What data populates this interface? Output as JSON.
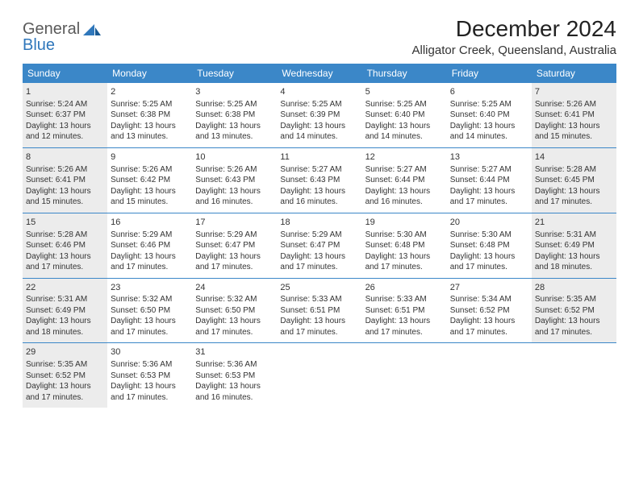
{
  "logo": {
    "general": "General",
    "blue": "Blue"
  },
  "title": "December 2024",
  "location": "Alligator Creek, Queensland, Australia",
  "colors": {
    "header_bg": "#3b87c8",
    "header_text": "#ffffff",
    "shaded_bg": "#ececec",
    "border": "#3b87c8",
    "logo_general": "#5a5a5a",
    "logo_blue": "#2f77bb"
  },
  "day_names": [
    "Sunday",
    "Monday",
    "Tuesday",
    "Wednesday",
    "Thursday",
    "Friday",
    "Saturday"
  ],
  "weeks": [
    [
      {
        "day": "1",
        "shaded": true,
        "sunrise": "Sunrise: 5:24 AM",
        "sunset": "Sunset: 6:37 PM",
        "daylight1": "Daylight: 13 hours",
        "daylight2": "and 12 minutes."
      },
      {
        "day": "2",
        "shaded": false,
        "sunrise": "Sunrise: 5:25 AM",
        "sunset": "Sunset: 6:38 PM",
        "daylight1": "Daylight: 13 hours",
        "daylight2": "and 13 minutes."
      },
      {
        "day": "3",
        "shaded": false,
        "sunrise": "Sunrise: 5:25 AM",
        "sunset": "Sunset: 6:38 PM",
        "daylight1": "Daylight: 13 hours",
        "daylight2": "and 13 minutes."
      },
      {
        "day": "4",
        "shaded": false,
        "sunrise": "Sunrise: 5:25 AM",
        "sunset": "Sunset: 6:39 PM",
        "daylight1": "Daylight: 13 hours",
        "daylight2": "and 14 minutes."
      },
      {
        "day": "5",
        "shaded": false,
        "sunrise": "Sunrise: 5:25 AM",
        "sunset": "Sunset: 6:40 PM",
        "daylight1": "Daylight: 13 hours",
        "daylight2": "and 14 minutes."
      },
      {
        "day": "6",
        "shaded": false,
        "sunrise": "Sunrise: 5:25 AM",
        "sunset": "Sunset: 6:40 PM",
        "daylight1": "Daylight: 13 hours",
        "daylight2": "and 14 minutes."
      },
      {
        "day": "7",
        "shaded": true,
        "sunrise": "Sunrise: 5:26 AM",
        "sunset": "Sunset: 6:41 PM",
        "daylight1": "Daylight: 13 hours",
        "daylight2": "and 15 minutes."
      }
    ],
    [
      {
        "day": "8",
        "shaded": true,
        "sunrise": "Sunrise: 5:26 AM",
        "sunset": "Sunset: 6:41 PM",
        "daylight1": "Daylight: 13 hours",
        "daylight2": "and 15 minutes."
      },
      {
        "day": "9",
        "shaded": false,
        "sunrise": "Sunrise: 5:26 AM",
        "sunset": "Sunset: 6:42 PM",
        "daylight1": "Daylight: 13 hours",
        "daylight2": "and 15 minutes."
      },
      {
        "day": "10",
        "shaded": false,
        "sunrise": "Sunrise: 5:26 AM",
        "sunset": "Sunset: 6:43 PM",
        "daylight1": "Daylight: 13 hours",
        "daylight2": "and 16 minutes."
      },
      {
        "day": "11",
        "shaded": false,
        "sunrise": "Sunrise: 5:27 AM",
        "sunset": "Sunset: 6:43 PM",
        "daylight1": "Daylight: 13 hours",
        "daylight2": "and 16 minutes."
      },
      {
        "day": "12",
        "shaded": false,
        "sunrise": "Sunrise: 5:27 AM",
        "sunset": "Sunset: 6:44 PM",
        "daylight1": "Daylight: 13 hours",
        "daylight2": "and 16 minutes."
      },
      {
        "day": "13",
        "shaded": false,
        "sunrise": "Sunrise: 5:27 AM",
        "sunset": "Sunset: 6:44 PM",
        "daylight1": "Daylight: 13 hours",
        "daylight2": "and 17 minutes."
      },
      {
        "day": "14",
        "shaded": true,
        "sunrise": "Sunrise: 5:28 AM",
        "sunset": "Sunset: 6:45 PM",
        "daylight1": "Daylight: 13 hours",
        "daylight2": "and 17 minutes."
      }
    ],
    [
      {
        "day": "15",
        "shaded": true,
        "sunrise": "Sunrise: 5:28 AM",
        "sunset": "Sunset: 6:46 PM",
        "daylight1": "Daylight: 13 hours",
        "daylight2": "and 17 minutes."
      },
      {
        "day": "16",
        "shaded": false,
        "sunrise": "Sunrise: 5:29 AM",
        "sunset": "Sunset: 6:46 PM",
        "daylight1": "Daylight: 13 hours",
        "daylight2": "and 17 minutes."
      },
      {
        "day": "17",
        "shaded": false,
        "sunrise": "Sunrise: 5:29 AM",
        "sunset": "Sunset: 6:47 PM",
        "daylight1": "Daylight: 13 hours",
        "daylight2": "and 17 minutes."
      },
      {
        "day": "18",
        "shaded": false,
        "sunrise": "Sunrise: 5:29 AM",
        "sunset": "Sunset: 6:47 PM",
        "daylight1": "Daylight: 13 hours",
        "daylight2": "and 17 minutes."
      },
      {
        "day": "19",
        "shaded": false,
        "sunrise": "Sunrise: 5:30 AM",
        "sunset": "Sunset: 6:48 PM",
        "daylight1": "Daylight: 13 hours",
        "daylight2": "and 17 minutes."
      },
      {
        "day": "20",
        "shaded": false,
        "sunrise": "Sunrise: 5:30 AM",
        "sunset": "Sunset: 6:48 PM",
        "daylight1": "Daylight: 13 hours",
        "daylight2": "and 17 minutes."
      },
      {
        "day": "21",
        "shaded": true,
        "sunrise": "Sunrise: 5:31 AM",
        "sunset": "Sunset: 6:49 PM",
        "daylight1": "Daylight: 13 hours",
        "daylight2": "and 18 minutes."
      }
    ],
    [
      {
        "day": "22",
        "shaded": true,
        "sunrise": "Sunrise: 5:31 AM",
        "sunset": "Sunset: 6:49 PM",
        "daylight1": "Daylight: 13 hours",
        "daylight2": "and 18 minutes."
      },
      {
        "day": "23",
        "shaded": false,
        "sunrise": "Sunrise: 5:32 AM",
        "sunset": "Sunset: 6:50 PM",
        "daylight1": "Daylight: 13 hours",
        "daylight2": "and 17 minutes."
      },
      {
        "day": "24",
        "shaded": false,
        "sunrise": "Sunrise: 5:32 AM",
        "sunset": "Sunset: 6:50 PM",
        "daylight1": "Daylight: 13 hours",
        "daylight2": "and 17 minutes."
      },
      {
        "day": "25",
        "shaded": false,
        "sunrise": "Sunrise: 5:33 AM",
        "sunset": "Sunset: 6:51 PM",
        "daylight1": "Daylight: 13 hours",
        "daylight2": "and 17 minutes."
      },
      {
        "day": "26",
        "shaded": false,
        "sunrise": "Sunrise: 5:33 AM",
        "sunset": "Sunset: 6:51 PM",
        "daylight1": "Daylight: 13 hours",
        "daylight2": "and 17 minutes."
      },
      {
        "day": "27",
        "shaded": false,
        "sunrise": "Sunrise: 5:34 AM",
        "sunset": "Sunset: 6:52 PM",
        "daylight1": "Daylight: 13 hours",
        "daylight2": "and 17 minutes."
      },
      {
        "day": "28",
        "shaded": true,
        "sunrise": "Sunrise: 5:35 AM",
        "sunset": "Sunset: 6:52 PM",
        "daylight1": "Daylight: 13 hours",
        "daylight2": "and 17 minutes."
      }
    ],
    [
      {
        "day": "29",
        "shaded": true,
        "sunrise": "Sunrise: 5:35 AM",
        "sunset": "Sunset: 6:52 PM",
        "daylight1": "Daylight: 13 hours",
        "daylight2": "and 17 minutes."
      },
      {
        "day": "30",
        "shaded": false,
        "sunrise": "Sunrise: 5:36 AM",
        "sunset": "Sunset: 6:53 PM",
        "daylight1": "Daylight: 13 hours",
        "daylight2": "and 17 minutes."
      },
      {
        "day": "31",
        "shaded": false,
        "sunrise": "Sunrise: 5:36 AM",
        "sunset": "Sunset: 6:53 PM",
        "daylight1": "Daylight: 13 hours",
        "daylight2": "and 16 minutes."
      },
      null,
      null,
      null,
      null
    ]
  ]
}
